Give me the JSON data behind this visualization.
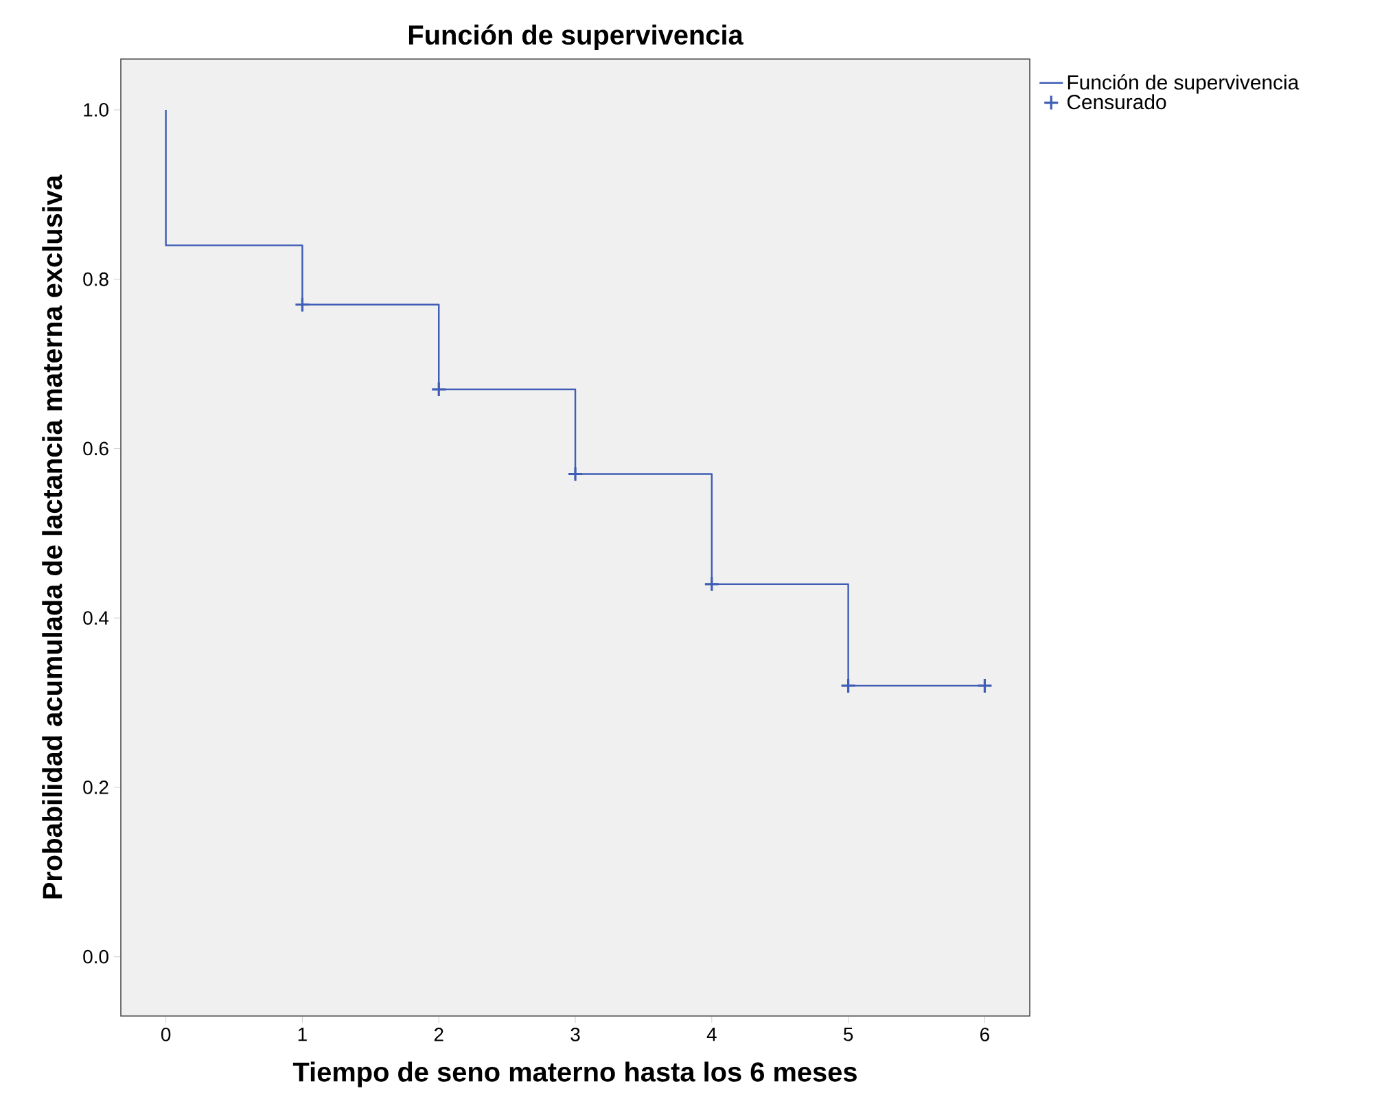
{
  "chart_data": {
    "type": "step",
    "title": "Función de supervivencia",
    "xlabel": "Tiempo de seno materno hasta los 6 meses",
    "ylabel": "Probabilidad acumulada de lactancia materna exclusiva",
    "xlim": [
      -0.33,
      6.33
    ],
    "ylim": [
      -0.07,
      1.06
    ],
    "xticks": [
      0,
      1,
      2,
      3,
      4,
      5,
      6
    ],
    "yticks": [
      {
        "value": 0,
        "label": "0.0"
      },
      {
        "value": 0.2,
        "label": "0.2"
      },
      {
        "value": 0.4,
        "label": "0.4"
      },
      {
        "value": 0.6,
        "label": "0.6"
      },
      {
        "value": 0.8,
        "label": "0.8"
      },
      {
        "value": 1,
        "label": "1.0"
      }
    ],
    "legend": "top right",
    "series": [
      {
        "name": "Función de supervivencia",
        "color": "#3f5db4",
        "marker": "none",
        "x": [
          0,
          0,
          1,
          2,
          3,
          4,
          5,
          6
        ],
        "values": [
          1,
          0.84,
          0.77,
          0.67,
          0.57,
          0.44,
          0.32,
          0.32
        ]
      },
      {
        "name": "Censurado",
        "type": "scatter",
        "color": "#3f5db4",
        "marker": "cross",
        "x": [
          1,
          2,
          3,
          4,
          5,
          6
        ],
        "values": [
          0.77,
          0.67,
          0.57,
          0.44,
          0.32,
          0.32
        ]
      }
    ]
  }
}
